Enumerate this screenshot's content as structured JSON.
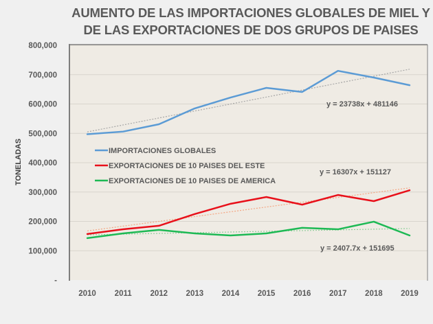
{
  "chart_data": {
    "type": "line",
    "title": [
      "AUMENTO DE LAS IMPORTACIONES GLOBALES DE MIEL Y",
      "DE LAS EXPORTACIONES DE DOS GRUPOS DE PAISES"
    ],
    "xlabel": "",
    "ylabel": "TONELADAS",
    "categories": [
      "2010",
      "2011",
      "2012",
      "2013",
      "2014",
      "2015",
      "2016",
      "2017",
      "2018",
      "2019"
    ],
    "ylim": [
      0,
      800000
    ],
    "yticks": [
      0,
      100000,
      200000,
      300000,
      400000,
      500000,
      600000,
      700000,
      800000
    ],
    "ytick_labels": [
      "-",
      "100,000",
      "200,000",
      "300,000",
      "400,000",
      "500,000",
      "600,000",
      "700,000",
      "800,000"
    ],
    "grid": true,
    "legend_position": "center-left",
    "series": [
      {
        "name": "IMPORTACIONES GLOBALES",
        "color": "#5b9bd5",
        "values": [
          497000,
          506000,
          531000,
          585000,
          622000,
          655000,
          641000,
          713000,
          690000,
          664000
        ],
        "trendline": {
          "slope": 23738,
          "intercept": 481146,
          "label": "y = 23738x + 481146",
          "color": "#a6a6a6"
        }
      },
      {
        "name": "EXPORTACIONES DE 10 PAISES DEL ESTE",
        "color": "#e8101a",
        "values": [
          157000,
          173000,
          185000,
          225000,
          260000,
          283000,
          257000,
          290000,
          269000,
          306000
        ],
        "trendline": {
          "slope": 16307,
          "intercept": 151127,
          "label": "y = 16307x + 151127",
          "color": "#f4a582"
        }
      },
      {
        "name": "EXPORTACIONES DE 10 PAISES DE AMERICA",
        "color": "#1db954",
        "values": [
          143000,
          159000,
          171000,
          159000,
          152000,
          159000,
          178000,
          173000,
          199000,
          152000
        ],
        "trendline": {
          "slope": 2407.7,
          "intercept": 151695,
          "label": "y = 2407.7x + 151695",
          "color": "#8fcf9a"
        }
      }
    ]
  }
}
